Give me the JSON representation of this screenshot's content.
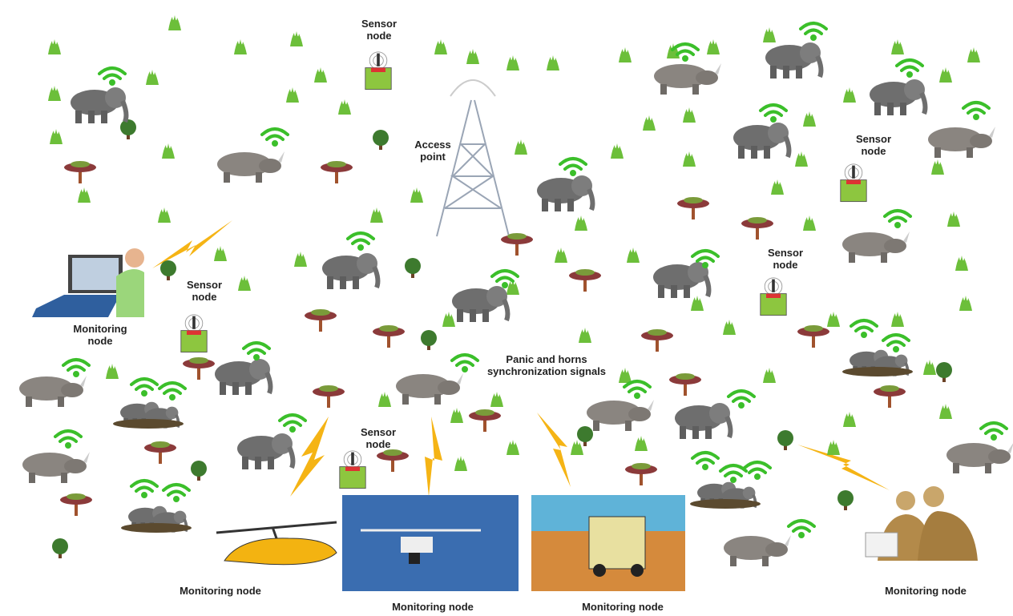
{
  "labels": {
    "sensor_nodes": [
      "Sensor node",
      "Sensor node",
      "Sensor node",
      "Sensor node",
      "Sensor node"
    ],
    "access_point": "Access point",
    "monitoring_nodes": [
      "Monitoring node",
      "Monitoring node",
      "Monitoring node",
      "Monitoring node",
      "Monitoring node"
    ],
    "signals": "Panic and horns synchronization signals"
  }
}
